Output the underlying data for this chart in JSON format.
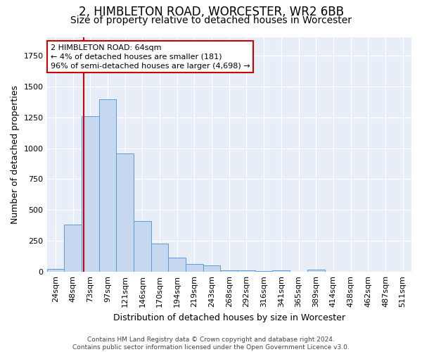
{
  "title1": "2, HIMBLETON ROAD, WORCESTER, WR2 6BB",
  "title2": "Size of property relative to detached houses in Worcester",
  "xlabel": "Distribution of detached houses by size in Worcester",
  "ylabel": "Number of detached properties",
  "bar_labels": [
    "24sqm",
    "48sqm",
    "73sqm",
    "97sqm",
    "121sqm",
    "146sqm",
    "170sqm",
    "194sqm",
    "219sqm",
    "243sqm",
    "268sqm",
    "292sqm",
    "316sqm",
    "341sqm",
    "365sqm",
    "389sqm",
    "414sqm",
    "438sqm",
    "462sqm",
    "487sqm",
    "511sqm"
  ],
  "bar_values": [
    25,
    380,
    1260,
    1395,
    955,
    410,
    228,
    115,
    65,
    50,
    15,
    12,
    8,
    13,
    0,
    20,
    0,
    0,
    0,
    0,
    0
  ],
  "bar_color": "#c5d8f0",
  "bar_edge_color": "#5b9bd5",
  "bg_color": "#e8eef8",
  "grid_color": "#ffffff",
  "annotation_text": "2 HIMBLETON ROAD: 64sqm\n← 4% of detached houses are smaller (181)\n96% of semi-detached houses are larger (4,698) →",
  "annotation_box_color": "#ffffff",
  "annotation_box_edge": "#cc0000",
  "vline_color": "#cc0000",
  "footer_text": "Contains HM Land Registry data © Crown copyright and database right 2024.\nContains public sector information licensed under the Open Government Licence v3.0.",
  "ylim": [
    0,
    1900
  ],
  "title1_fontsize": 12,
  "title2_fontsize": 10,
  "ylabel_fontsize": 9,
  "xlabel_fontsize": 9,
  "tick_fontsize": 8,
  "footer_fontsize": 6.5
}
